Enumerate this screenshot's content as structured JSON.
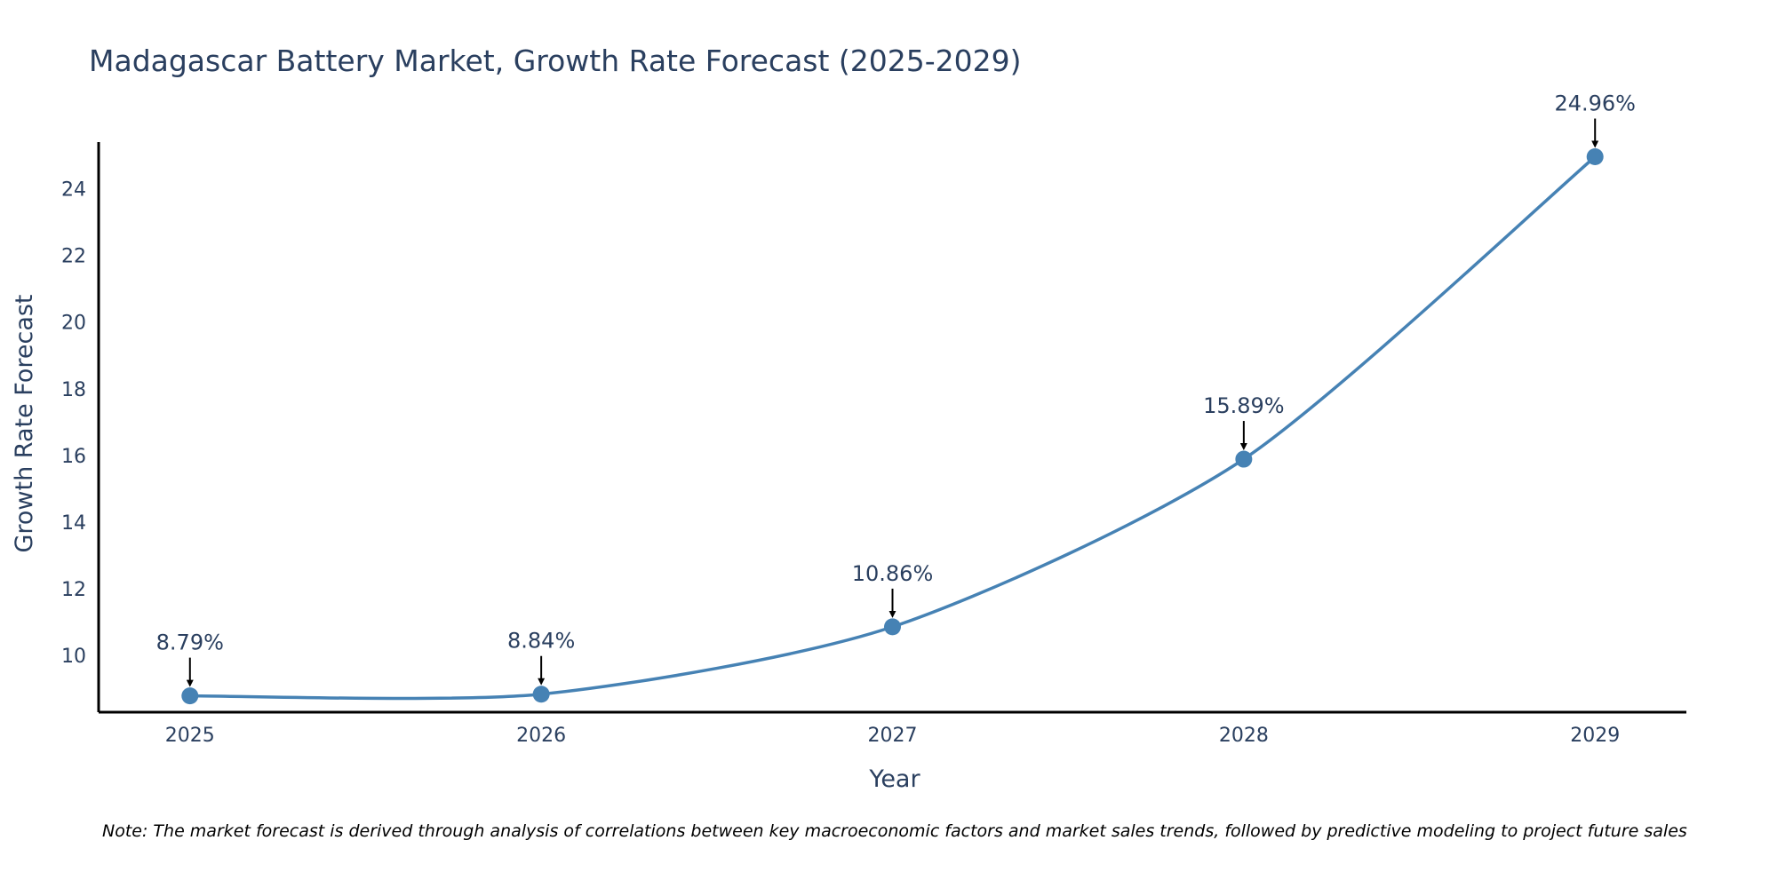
{
  "chart_data": {
    "type": "line",
    "title": "Madagascar Battery Market, Growth Rate Forecast (2025-2029)",
    "xlabel": "Year",
    "ylabel": "Growth Rate Forecast",
    "categories": [
      "2025",
      "2026",
      "2027",
      "2028",
      "2029"
    ],
    "series": [
      {
        "name": "Growth Rate Forecast",
        "values": [
          8.79,
          8.84,
          10.86,
          15.89,
          24.96
        ],
        "labels": [
          "8.79%",
          "8.84%",
          "10.86%",
          "15.89%",
          "24.96%"
        ]
      }
    ],
    "yticks": [
      10,
      12,
      14,
      16,
      18,
      20,
      22,
      24
    ],
    "ylim": [
      8.3,
      25.4
    ],
    "xlim": [
      2024.74,
      2029.26
    ],
    "grid": false,
    "line_color": "#4682b4",
    "marker_color": "#4682b4",
    "note": "Note: The market forecast is derived through analysis of correlations between key macroeconomic factors and market sales trends, followed by predictive modeling to project future sales"
  }
}
